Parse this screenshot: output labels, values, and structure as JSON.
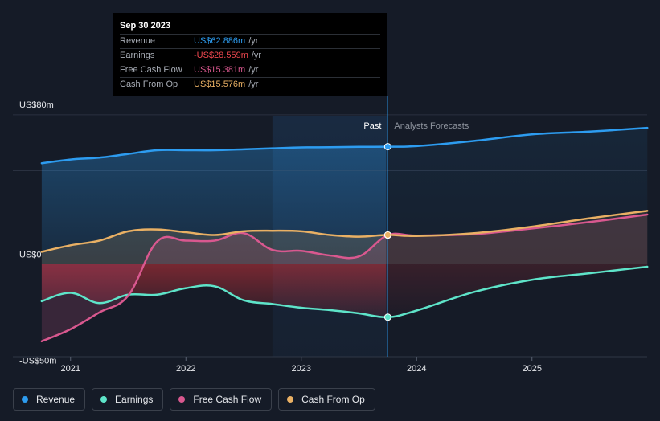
{
  "tooltip": {
    "date": "Sep 30 2023",
    "rows": [
      {
        "label": "Revenue",
        "value": "US$62.886m",
        "unit": "/yr",
        "color": "#2d9cf0"
      },
      {
        "label": "Earnings",
        "value": "-US$28.559m",
        "unit": "/yr",
        "color": "#f0484f"
      },
      {
        "label": "Free Cash Flow",
        "value": "US$15.381m",
        "unit": "/yr",
        "color": "#d9588f"
      },
      {
        "label": "Cash From Op",
        "value": "US$15.576m",
        "unit": "/yr",
        "color": "#e9b064"
      }
    ]
  },
  "chart_data": {
    "type": "line",
    "title": "",
    "xlabel": "",
    "ylabel": "",
    "ylim": [
      -50,
      80
    ],
    "ytick_labels": [
      {
        "value": 80,
        "label": "US$80m"
      },
      {
        "value": 0,
        "label": "US$0"
      },
      {
        "value": -50,
        "label": "-US$50m"
      }
    ],
    "xlim": [
      2020.5,
      2026.0
    ],
    "xtick_labels": [
      {
        "value": 2021,
        "label": "2021"
      },
      {
        "value": 2022,
        "label": "2022"
      },
      {
        "value": 2023,
        "label": "2023"
      },
      {
        "value": 2024,
        "label": "2024"
      },
      {
        "value": 2025,
        "label": "2025"
      }
    ],
    "past_boundary": 2023.75,
    "past_label": "Past",
    "forecast_label": "Analysts Forecasts",
    "colors": {
      "revenue": "#2d9cf0",
      "earnings": "#5ee4c9",
      "fcf": "#d9588f",
      "cfo": "#e9b064"
    },
    "series": [
      {
        "name": "Revenue",
        "key": "revenue",
        "x": [
          2020.75,
          2021.0,
          2021.25,
          2021.5,
          2021.75,
          2022.0,
          2022.25,
          2022.5,
          2022.75,
          2023.0,
          2023.25,
          2023.5,
          2023.75,
          2024.0,
          2024.5,
          2025.0,
          2025.5,
          2026.0
        ],
        "y": [
          54.0,
          56.0,
          57.0,
          59.0,
          61.0,
          61.0,
          61.0,
          61.5,
          62.0,
          62.5,
          62.6,
          62.8,
          62.886,
          63.2,
          66.0,
          69.5,
          71.0,
          73.0
        ]
      },
      {
        "name": "Earnings",
        "key": "earnings",
        "x": [
          2020.75,
          2021.0,
          2021.25,
          2021.5,
          2021.75,
          2022.0,
          2022.25,
          2022.5,
          2022.75,
          2023.0,
          2023.25,
          2023.5,
          2023.75,
          2024.0,
          2024.5,
          2025.0,
          2025.5,
          2026.0
        ],
        "y": [
          -20.0,
          -15.5,
          -21.0,
          -16.5,
          -16.5,
          -13.0,
          -12.0,
          -19.5,
          -21.5,
          -23.5,
          -24.8,
          -26.5,
          -28.559,
          -25.0,
          -15.0,
          -8.5,
          -5.0,
          -1.5
        ]
      },
      {
        "name": "Free Cash Flow",
        "key": "fcf",
        "x": [
          2020.75,
          2021.0,
          2021.25,
          2021.5,
          2021.75,
          2022.0,
          2022.25,
          2022.5,
          2022.75,
          2023.0,
          2023.25,
          2023.5,
          2023.75,
          2024.0,
          2024.5,
          2025.0,
          2025.5,
          2026.0
        ],
        "y": [
          -41.5,
          -35.0,
          -26.0,
          -17.0,
          12.0,
          12.5,
          12.5,
          16.5,
          7.5,
          7.0,
          4.5,
          4.0,
          15.381,
          15.2,
          16.0,
          19.0,
          22.5,
          26.5
        ]
      },
      {
        "name": "Cash From Op",
        "key": "cfo",
        "x": [
          2020.75,
          2021.0,
          2021.25,
          2021.5,
          2021.75,
          2022.0,
          2022.25,
          2022.5,
          2022.75,
          2023.0,
          2023.25,
          2023.5,
          2023.75,
          2024.0,
          2024.5,
          2025.0,
          2025.5,
          2026.0
        ],
        "y": [
          6.5,
          10.0,
          12.5,
          17.5,
          18.5,
          17.0,
          15.5,
          17.5,
          17.8,
          17.5,
          15.5,
          14.6,
          15.576,
          15.0,
          16.5,
          20.0,
          24.5,
          28.5
        ]
      }
    ],
    "legend": [
      {
        "name": "Revenue",
        "key": "revenue"
      },
      {
        "name": "Earnings",
        "key": "earnings"
      },
      {
        "name": "Free Cash Flow",
        "key": "fcf"
      },
      {
        "name": "Cash From Op",
        "key": "cfo"
      }
    ]
  }
}
